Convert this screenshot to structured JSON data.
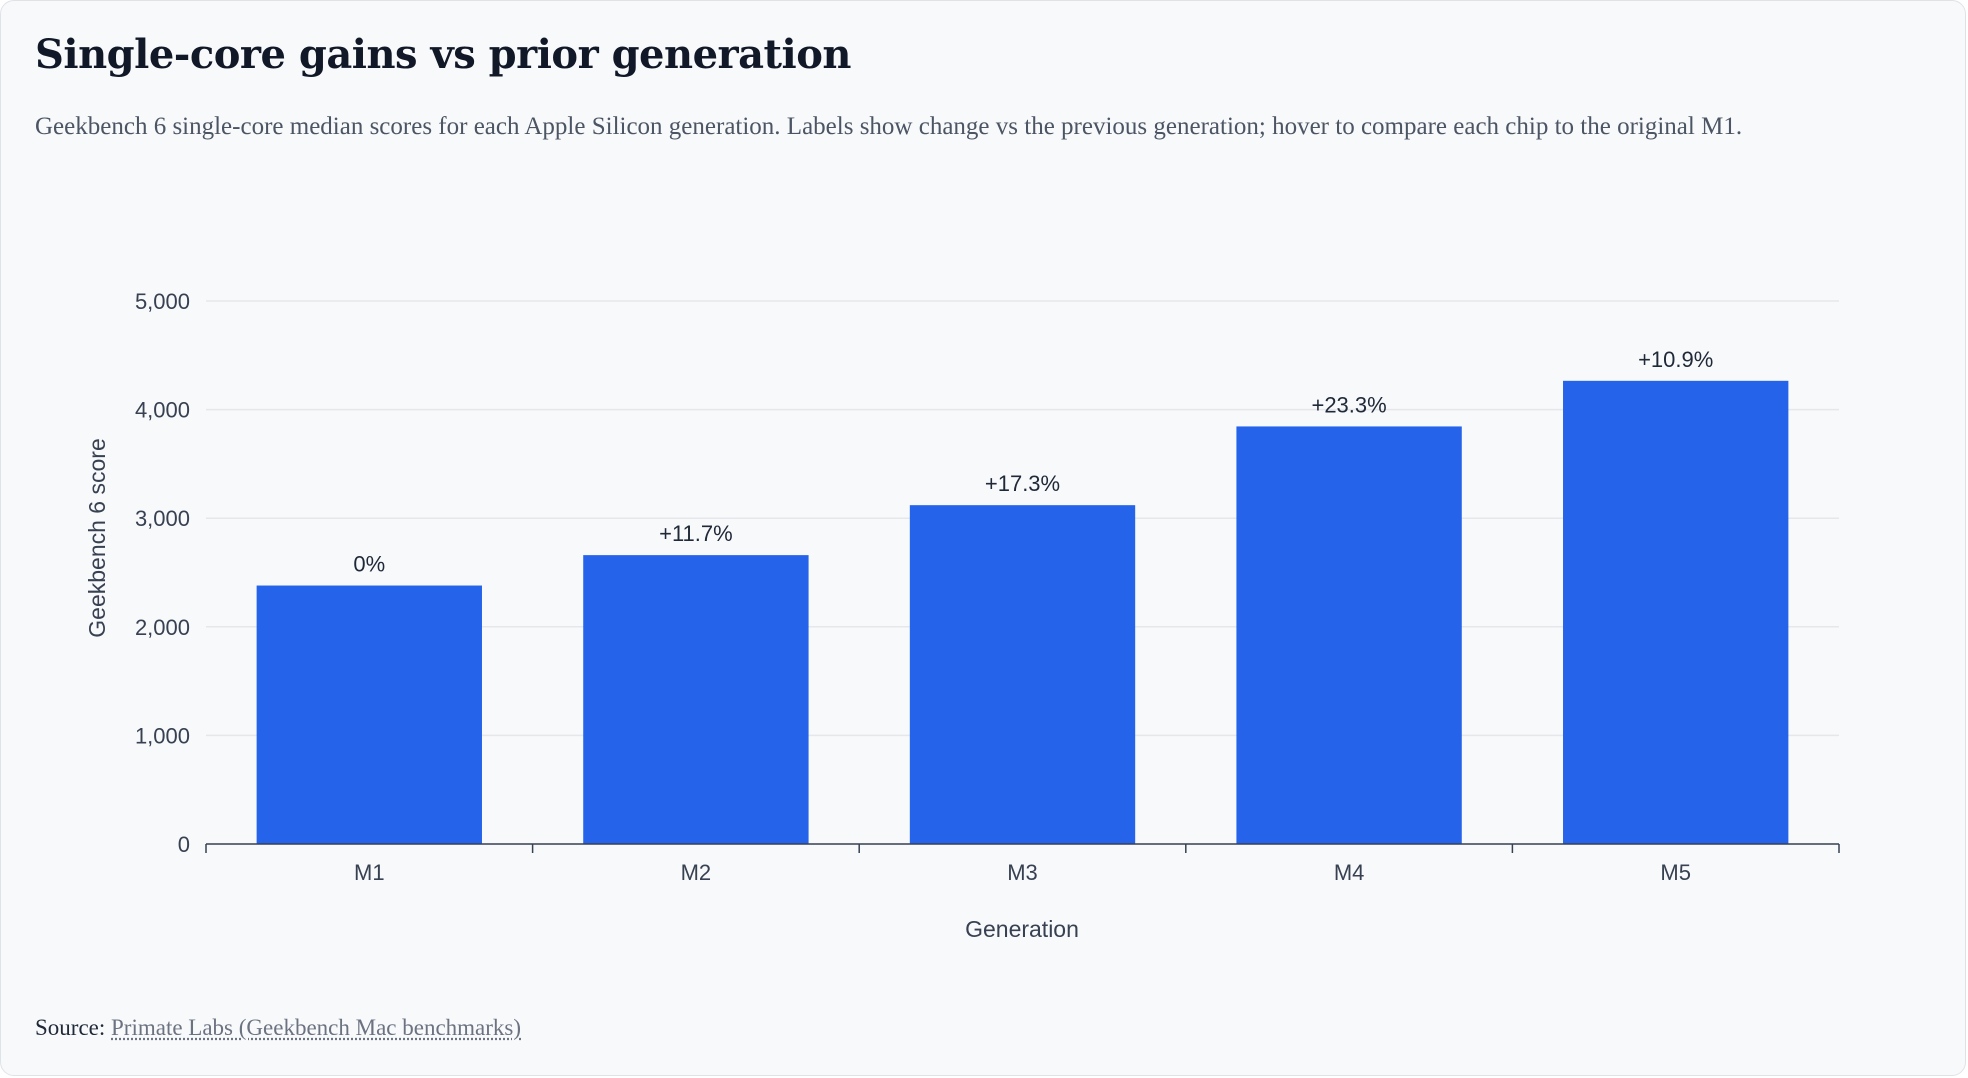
{
  "header": {
    "title": "Single-core gains vs prior generation",
    "subtitle": "Geekbench 6 single-core median scores for each Apple Silicon generation. Labels show change vs the previous generation; hover to compare each chip to the original M1."
  },
  "footer": {
    "source_label": "Source:",
    "source_link": "Primate Labs (Geekbench Mac benchmarks)"
  },
  "colors": {
    "bar": "#2563eb",
    "grid": "#e5e7eb",
    "axis": "#374151",
    "tick_text": "#374151",
    "label_text": "#1f2937"
  },
  "chart_data": {
    "type": "bar",
    "title": "Single-core gains vs prior generation",
    "xlabel": "Generation",
    "ylabel": "Geekbench 6 score",
    "categories": [
      "M1",
      "M2",
      "M3",
      "M4",
      "M5"
    ],
    "values": [
      2380,
      2660,
      3120,
      3845,
      4265
    ],
    "data_labels": [
      "0%",
      "+11.7%",
      "+17.3%",
      "+23.3%",
      "+10.9%"
    ],
    "ylim": [
      0,
      5000
    ],
    "yticks": [
      0,
      1000,
      2000,
      3000,
      4000,
      5000
    ],
    "ytick_labels": [
      "0",
      "1,000",
      "2,000",
      "3,000",
      "4,000",
      "5,000"
    ],
    "grid": true,
    "legend": "none"
  }
}
